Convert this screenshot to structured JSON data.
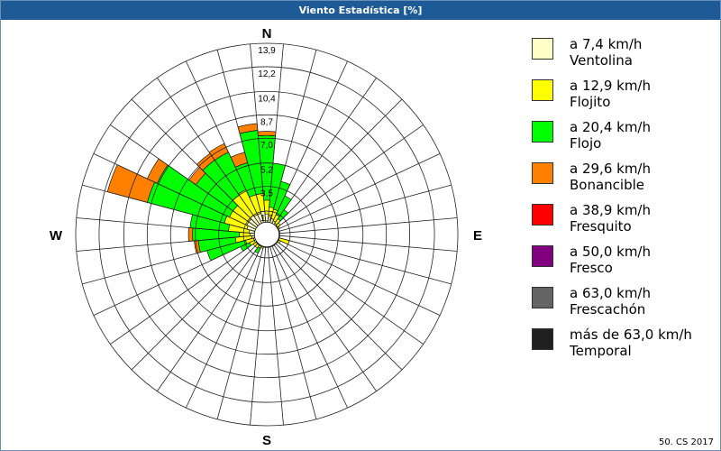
{
  "title": "Viento Estadística [%]",
  "credit": "50. CS 2017",
  "colors": {
    "frame": "#6a8fb8",
    "titlebar": "#1e5a96",
    "grid": "#222222",
    "bin_colors": [
      "#ffffc8",
      "#ffff00",
      "#00ff00",
      "#ff8000",
      "#ff0000",
      "#800080",
      "#646464",
      "#202020"
    ]
  },
  "legend": [
    {
      "speed": "a 7,4 km/h",
      "name": "Ventolina",
      "color": "#ffffc8"
    },
    {
      "speed": "a 12,9 km/h",
      "name": "Flojito",
      "color": "#ffff00"
    },
    {
      "speed": "a 20,4 km/h",
      "name": "Flojo",
      "color": "#00ff00"
    },
    {
      "speed": "a 29,6 km/h",
      "name": "Bonancible",
      "color": "#ff8000"
    },
    {
      "speed": "a 38,9 km/h",
      "name": "Fresquito",
      "color": "#ff0000"
    },
    {
      "speed": "a 50,0 km/h",
      "name": "Fresco",
      "color": "#800080"
    },
    {
      "speed": "a 63,0 km/h",
      "name": "Frescachón",
      "color": "#646464"
    },
    {
      "speed": "más de 63,0 km/h",
      "name": "Temporal",
      "color": "#202020"
    }
  ],
  "chart_data": {
    "type": "wind-rose",
    "title": "Viento Estadística [%]",
    "radial_max": 13.9,
    "radial_ticks": [
      "13,9",
      "12,2",
      "10,4",
      "8,7",
      "7,0",
      "5,2",
      "3,5",
      "1,7"
    ],
    "radial_tick_values": [
      13.9,
      12.2,
      10.4,
      8.7,
      7.0,
      5.2,
      3.5,
      1.7
    ],
    "inner_circle_value": 0.9,
    "directions_labels": [
      "N",
      "E",
      "S",
      "W"
    ],
    "sector_count": 36,
    "sector_width_deg": 10,
    "sector_angles_deg": [
      0,
      10,
      20,
      30,
      40,
      50,
      60,
      70,
      80,
      90,
      100,
      110,
      120,
      130,
      140,
      150,
      160,
      170,
      180,
      190,
      200,
      210,
      220,
      230,
      240,
      250,
      260,
      270,
      280,
      290,
      300,
      310,
      320,
      330,
      340,
      350
    ],
    "bins": [
      "Ventolina",
      "Flojito",
      "Flojo",
      "Bonancible",
      "Fresquito",
      "Fresco",
      "Frescachón",
      "Temporal"
    ],
    "sectors": [
      {
        "dir": 0,
        "cum": [
          1.5,
          2.5,
          7.2,
          7.5
        ]
      },
      {
        "dir": 10,
        "cum": [
          1.3,
          2.0,
          5.2
        ]
      },
      {
        "dir": 20,
        "cum": [
          1.2,
          1.9,
          4.0
        ]
      },
      {
        "dir": 30,
        "cum": [
          1.1,
          1.6,
          3.1
        ]
      },
      {
        "dir": 40,
        "cum": [
          1.0,
          1.4,
          2.2
        ]
      },
      {
        "dir": 50,
        "cum": [
          0.95,
          1.2
        ]
      },
      {
        "dir": 60,
        "cum": [
          0.95,
          1.05
        ]
      },
      {
        "dir": 70,
        "cum": [
          0.95
        ]
      },
      {
        "dir": 80,
        "cum": [
          0.95
        ]
      },
      {
        "dir": 90,
        "cum": [
          0.95
        ]
      },
      {
        "dir": 100,
        "cum": [
          0.95
        ]
      },
      {
        "dir": 110,
        "cum": [
          0.95,
          1.7
        ]
      },
      {
        "dir": 120,
        "cum": [
          0.95,
          1.1
        ]
      },
      {
        "dir": 130,
        "cum": [
          0.95
        ]
      },
      {
        "dir": 140,
        "cum": [
          0.95
        ]
      },
      {
        "dir": 150,
        "cum": [
          0.95
        ]
      },
      {
        "dir": 160,
        "cum": [
          0.95
        ]
      },
      {
        "dir": 170,
        "cum": [
          0.95
        ]
      },
      {
        "dir": 180,
        "cum": [
          0.95
        ]
      },
      {
        "dir": 190,
        "cum": [
          0.95
        ]
      },
      {
        "dir": 200,
        "cum": [
          0.95,
          1.05
        ]
      },
      {
        "dir": 210,
        "cum": [
          0.95,
          1.1,
          1.5
        ]
      },
      {
        "dir": 220,
        "cum": [
          0.95,
          1.2
        ]
      },
      {
        "dir": 230,
        "cum": [
          0.95,
          1.2
        ]
      },
      {
        "dir": 240,
        "cum": [
          1.0,
          1.4,
          2.1
        ]
      },
      {
        "dir": 250,
        "cum": [
          1.0,
          1.6,
          4.5
        ]
      },
      {
        "dir": 260,
        "cum": [
          1.1,
          2.3,
          5.0,
          5.3
        ]
      },
      {
        "dir": 270,
        "cum": [
          1.2,
          2.0,
          5.4,
          5.7
        ]
      },
      {
        "dir": 280,
        "cum": [
          1.3,
          2.8,
          5.6
        ]
      },
      {
        "dir": 290,
        "cum": [
          1.5,
          3.2,
          9.0,
          12.0
        ]
      },
      {
        "dir": 300,
        "cum": [
          1.6,
          3.0,
          8.8,
          9.6
        ]
      },
      {
        "dir": 310,
        "cum": [
          1.6,
          3.0,
          6.3,
          6.9
        ]
      },
      {
        "dir": 320,
        "cum": [
          1.7,
          3.5,
          6.6,
          7.2
        ]
      },
      {
        "dir": 330,
        "cum": [
          1.6,
          3.6,
          6.6,
          7.3
        ]
      },
      {
        "dir": 340,
        "cum": [
          1.6,
          3.0,
          5.4,
          6.2
        ]
      },
      {
        "dir": 350,
        "cum": [
          1.7,
          3.0,
          7.6,
          8.1
        ]
      }
    ]
  }
}
